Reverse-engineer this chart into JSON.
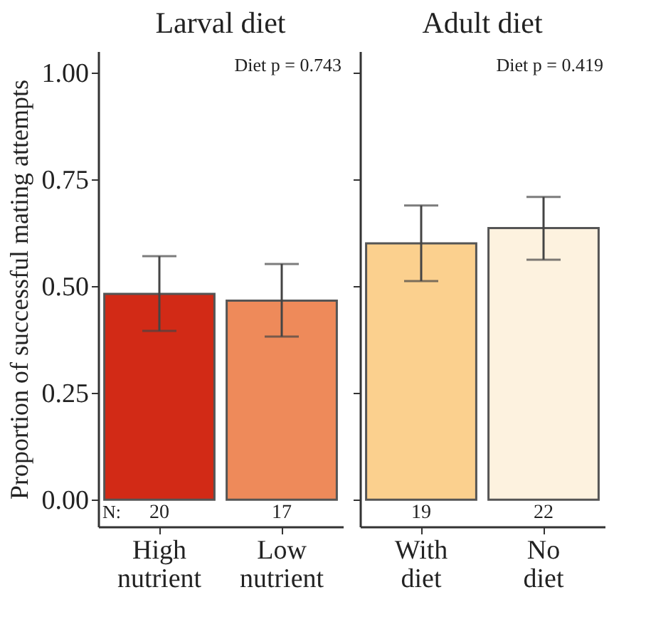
{
  "chart_data": [
    {
      "type": "bar",
      "title": "Larval diet",
      "ylabel": "Proportion of successful mating attempts",
      "categories": [
        "High nutrient",
        "Low nutrient"
      ],
      "values": [
        0.482,
        0.466
      ],
      "colors": [
        "#d22a16",
        "#ee8a5a"
      ],
      "errors": [
        [
          0.395,
          0.57
        ],
        [
          0.382,
          0.552
        ]
      ],
      "ylim": [
        -0.063,
        1.05
      ],
      "yticks": [
        {
          "value": 0,
          "label": "0.00"
        },
        {
          "value": 0.25,
          "label": "0.25"
        },
        {
          "value": 0.5,
          "label": "0.50"
        },
        {
          "value": 0.75,
          "label": "0.75"
        },
        {
          "value": 1,
          "label": "1.00"
        }
      ],
      "grid": false,
      "annotations": [
        "Diet  p = 0.743",
        "N:",
        "20",
        "17"
      ]
    },
    {
      "type": "bar",
      "title": "Adult diet",
      "categories": [
        "With diet",
        "No diet"
      ],
      "values": [
        0.6,
        0.636
      ],
      "colors": [
        "#fbd08e",
        "#fdf2df"
      ],
      "errors": [
        [
          0.512,
          0.689
        ],
        [
          0.562,
          0.709
        ]
      ],
      "ylim": [
        -0.063,
        1.05
      ],
      "yticks": [
        0,
        0.25,
        0.5,
        0.75,
        1
      ],
      "grid": false,
      "tick_labels": "x",
      "annotations": [
        "Diet  p = 0.419",
        "19",
        "22"
      ]
    }
  ]
}
